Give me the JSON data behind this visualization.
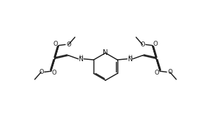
{
  "bg": "#ffffff",
  "lc": "#1a1a1a",
  "lw": 1.05,
  "fs": 6.2,
  "fig_w": 3.0,
  "fig_h": 1.82,
  "dpi": 100,
  "xlim": [
    -1,
    11
  ],
  "ylim": [
    -0.5,
    6.5
  ]
}
